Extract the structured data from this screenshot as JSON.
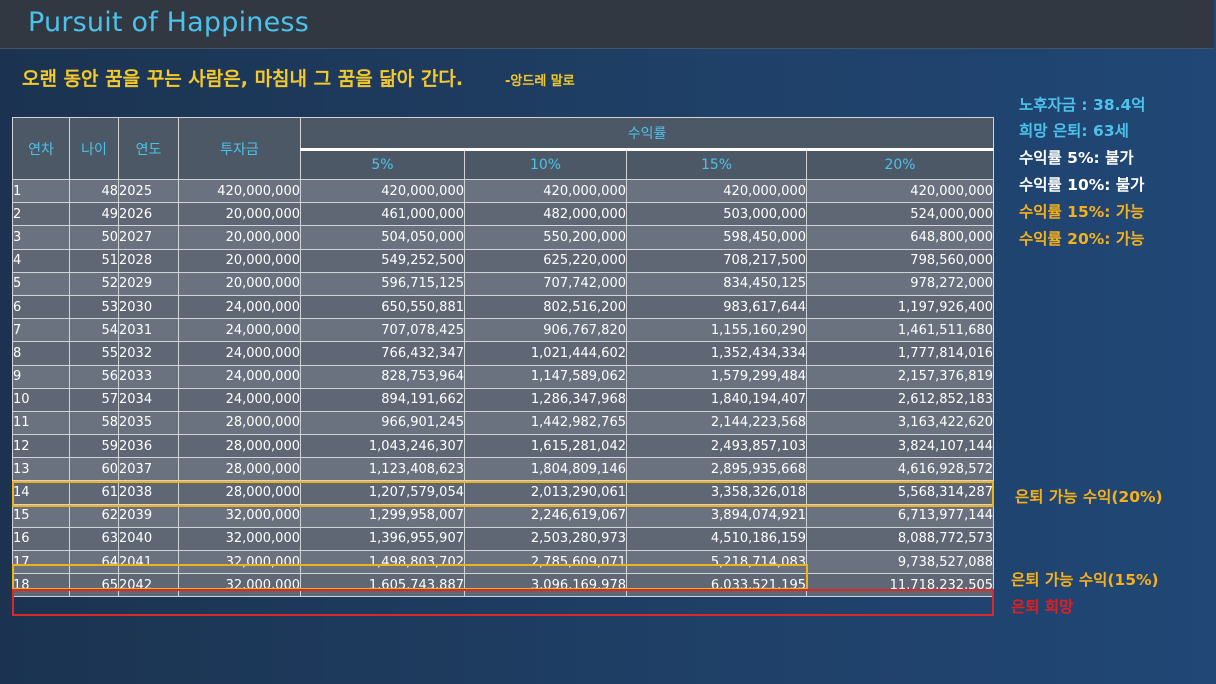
{
  "title": "Pursuit of Happiness",
  "quote": "오랜 동안 꿈을 꾸는 사람은, 마침내 그 꿈을 닮아 간다.",
  "quote_author": "-앙드레 말로",
  "side": {
    "fund": "노후자금 : 38.4억",
    "target": "희망 은퇴: 63세",
    "r5": "수익률  5%: 불가",
    "r10": "수익률 10%: 불가",
    "r15": "수익률 15%: 가능",
    "r20": "수익률 20%: 가능"
  },
  "colors": {
    "accent": "#4cc2ea",
    "gold": "#f6b11a",
    "red": "#e02020"
  },
  "table": {
    "headers": {
      "year_no": "연차",
      "age": "나이",
      "year": "연도",
      "investment": "투자금",
      "return": "수익률",
      "r5": "5%",
      "r10": "10%",
      "r15": "15%",
      "r20": "20%"
    },
    "rows": [
      [
        "1",
        "48",
        "2025",
        "420,000,000",
        "420,000,000",
        "420,000,000",
        "420,000,000",
        "420,000,000"
      ],
      [
        "2",
        "49",
        "2026",
        "20,000,000",
        "461,000,000",
        "482,000,000",
        "503,000,000",
        "524,000,000"
      ],
      [
        "3",
        "50",
        "2027",
        "20,000,000",
        "504,050,000",
        "550,200,000",
        "598,450,000",
        "648,800,000"
      ],
      [
        "4",
        "51",
        "2028",
        "20,000,000",
        "549,252,500",
        "625,220,000",
        "708,217,500",
        "798,560,000"
      ],
      [
        "5",
        "52",
        "2029",
        "20,000,000",
        "596,715,125",
        "707,742,000",
        "834,450,125",
        "978,272,000"
      ],
      [
        "6",
        "53",
        "2030",
        "24,000,000",
        "650,550,881",
        "802,516,200",
        "983,617,644",
        "1,197,926,400"
      ],
      [
        "7",
        "54",
        "2031",
        "24,000,000",
        "707,078,425",
        "906,767,820",
        "1,155,160,290",
        "1,461,511,680"
      ],
      [
        "8",
        "55",
        "2032",
        "24,000,000",
        "766,432,347",
        "1,021,444,602",
        "1,352,434,334",
        "1,777,814,016"
      ],
      [
        "9",
        "56",
        "2033",
        "24,000,000",
        "828,753,964",
        "1,147,589,062",
        "1,579,299,484",
        "2,157,376,819"
      ],
      [
        "10",
        "57",
        "2034",
        "24,000,000",
        "894,191,662",
        "1,286,347,968",
        "1,840,194,407",
        "2,612,852,183"
      ],
      [
        "11",
        "58",
        "2035",
        "28,000,000",
        "966,901,245",
        "1,442,982,765",
        "2,144,223,568",
        "3,163,422,620"
      ],
      [
        "12",
        "59",
        "2036",
        "28,000,000",
        "1,043,246,307",
        "1,615,281,042",
        "2,493,857,103",
        "3,824,107,144"
      ],
      [
        "13",
        "60",
        "2037",
        "28,000,000",
        "1,123,408,623",
        "1,804,809,146",
        "2,895,935,668",
        "4,616,928,572"
      ],
      [
        "14",
        "61",
        "2038",
        "28,000,000",
        "1,207,579,054",
        "2,013,290,061",
        "3,358,326,018",
        "5,568,314,287"
      ],
      [
        "15",
        "62",
        "2039",
        "32,000,000",
        "1,299,958,007",
        "2,246,619,067",
        "3,894,074,921",
        "6,713,977,144"
      ],
      [
        "16",
        "63",
        "2040",
        "32,000,000",
        "1,396,955,907",
        "2,503,280,973",
        "4,510,186,159",
        "8,088,772,573"
      ],
      [
        "17",
        "64",
        "2041",
        "32,000,000",
        "1,498,803,702",
        "2,785,609,071",
        "5,218,714,083",
        "9,738,527,088"
      ],
      [
        "18",
        "65",
        "2042",
        "32,000,000",
        "1,605,743,887",
        "3,096,169,978",
        "6,033,521,195",
        "11,718,232,505"
      ]
    ]
  },
  "notes": {
    "retire20": "은퇴 가능 수익(20%)",
    "retire15": "은퇴 가능 수익(15%)",
    "hope": "은퇴 희망"
  }
}
